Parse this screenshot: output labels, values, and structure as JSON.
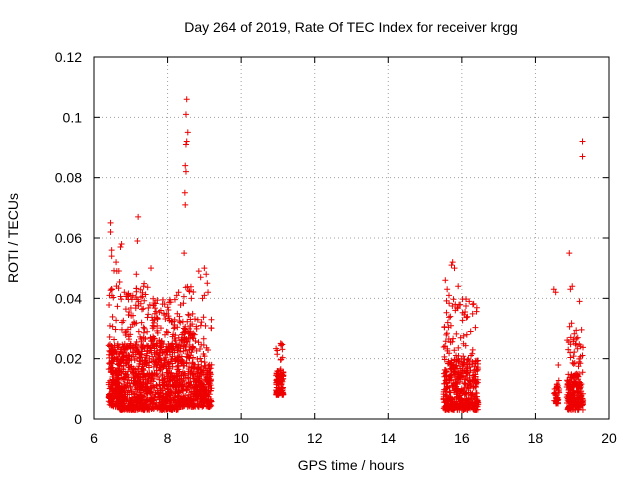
{
  "chart_data": {
    "type": "scatter",
    "title": "Day 264 of 2019, Rate Of TEC Index for receiver krgg",
    "xlabel": "GPS time / hours",
    "ylabel": "ROTI / TECUs",
    "xlim": [
      6,
      20
    ],
    "ylim": [
      0,
      0.12
    ],
    "xticks": [
      "6",
      "8",
      "10",
      "12",
      "14",
      "16",
      "18",
      "20"
    ],
    "yticks": [
      "0",
      "0.02",
      "0.04",
      "0.06",
      "0.08",
      "0.1",
      "0.12"
    ],
    "grid": true,
    "marker": "plus",
    "color": "#ee0000",
    "clusters": [
      {
        "x_range": [
          6.4,
          6.7
        ],
        "y_min": 0.004,
        "y_typical": 0.025,
        "y_max": 0.05,
        "count": 220
      },
      {
        "x_range": [
          6.7,
          7.5
        ],
        "y_min": 0.003,
        "y_typical": 0.025,
        "y_max": 0.045,
        "count": 520
      },
      {
        "x_range": [
          7.5,
          8.3
        ],
        "y_min": 0.003,
        "y_typical": 0.025,
        "y_max": 0.04,
        "count": 480
      },
      {
        "x_range": [
          8.3,
          8.7
        ],
        "y_min": 0.004,
        "y_typical": 0.03,
        "y_max": 0.045,
        "count": 220
      },
      {
        "x_range": [
          8.7,
          9.2
        ],
        "y_min": 0.004,
        "y_typical": 0.018,
        "y_max": 0.035,
        "count": 260
      },
      {
        "x_range": [
          10.95,
          11.15
        ],
        "y_min": 0.008,
        "y_typical": 0.016,
        "y_max": 0.027,
        "count": 110
      },
      {
        "x_range": [
          15.5,
          16.45
        ],
        "y_min": 0.003,
        "y_typical": 0.02,
        "y_max": 0.04,
        "count": 480
      },
      {
        "x_range": [
          18.5,
          18.65
        ],
        "y_min": 0.005,
        "y_typical": 0.012,
        "y_max": 0.018,
        "count": 40
      },
      {
        "x_range": [
          18.85,
          19.3
        ],
        "y_min": 0.003,
        "y_typical": 0.015,
        "y_max": 0.032,
        "count": 220
      }
    ],
    "points": [
      {
        "x": 6.45,
        "y": 0.065
      },
      {
        "x": 6.45,
        "y": 0.062
      },
      {
        "x": 6.48,
        "y": 0.056
      },
      {
        "x": 6.48,
        "y": 0.054
      },
      {
        "x": 6.42,
        "y": 0.041
      },
      {
        "x": 6.6,
        "y": 0.052
      },
      {
        "x": 6.62,
        "y": 0.049
      },
      {
        "x": 6.72,
        "y": 0.057
      },
      {
        "x": 6.75,
        "y": 0.058
      },
      {
        "x": 7.2,
        "y": 0.067
      },
      {
        "x": 7.18,
        "y": 0.059
      },
      {
        "x": 7.15,
        "y": 0.048
      },
      {
        "x": 7.55,
        "y": 0.05
      },
      {
        "x": 7.35,
        "y": 0.044
      },
      {
        "x": 7.9,
        "y": 0.035
      },
      {
        "x": 8.25,
        "y": 0.041
      },
      {
        "x": 8.3,
        "y": 0.042
      },
      {
        "x": 8.52,
        "y": 0.106
      },
      {
        "x": 8.5,
        "y": 0.101
      },
      {
        "x": 8.55,
        "y": 0.095
      },
      {
        "x": 8.5,
        "y": 0.091
      },
      {
        "x": 8.52,
        "y": 0.092
      },
      {
        "x": 8.48,
        "y": 0.084
      },
      {
        "x": 8.5,
        "y": 0.082
      },
      {
        "x": 8.47,
        "y": 0.075
      },
      {
        "x": 8.48,
        "y": 0.071
      },
      {
        "x": 8.45,
        "y": 0.055
      },
      {
        "x": 8.85,
        "y": 0.049
      },
      {
        "x": 8.9,
        "y": 0.047
      },
      {
        "x": 9.0,
        "y": 0.05
      },
      {
        "x": 9.05,
        "y": 0.048
      },
      {
        "x": 9.08,
        "y": 0.045
      },
      {
        "x": 9.0,
        "y": 0.041
      },
      {
        "x": 8.95,
        "y": 0.04
      },
      {
        "x": 9.1,
        "y": 0.042
      },
      {
        "x": 15.55,
        "y": 0.046
      },
      {
        "x": 15.6,
        "y": 0.043
      },
      {
        "x": 15.72,
        "y": 0.051
      },
      {
        "x": 15.75,
        "y": 0.052
      },
      {
        "x": 15.8,
        "y": 0.05
      },
      {
        "x": 15.65,
        "y": 0.041
      },
      {
        "x": 15.9,
        "y": 0.044
      },
      {
        "x": 16.2,
        "y": 0.039
      },
      {
        "x": 16.3,
        "y": 0.038
      },
      {
        "x": 18.5,
        "y": 0.043
      },
      {
        "x": 18.55,
        "y": 0.042
      },
      {
        "x": 18.92,
        "y": 0.055
      },
      {
        "x": 18.95,
        "y": 0.043
      },
      {
        "x": 19.0,
        "y": 0.044
      },
      {
        "x": 19.2,
        "y": 0.039
      },
      {
        "x": 19.28,
        "y": 0.092
      },
      {
        "x": 19.28,
        "y": 0.087
      }
    ]
  }
}
